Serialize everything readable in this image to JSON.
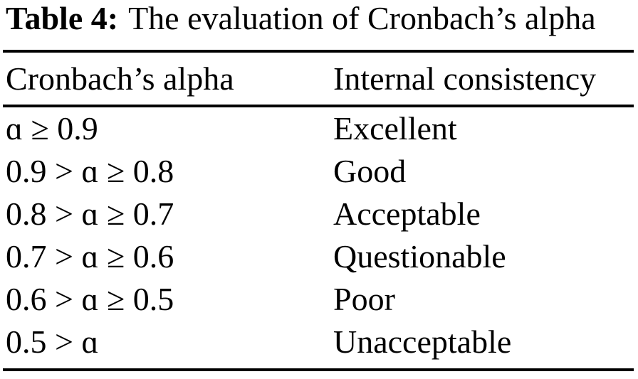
{
  "caption": {
    "label": "Table 4:",
    "text": "The evaluation of Cronbach’s alpha"
  },
  "table": {
    "headers": [
      "Cronbach’s alpha",
      "Internal consistency"
    ],
    "rows": [
      [
        "ɑ ≥ 0.9",
        "Excellent"
      ],
      [
        "0.9 > ɑ ≥ 0.8",
        "Good"
      ],
      [
        "0.8 > ɑ ≥ 0.7",
        "Acceptable"
      ],
      [
        "0.7 > ɑ ≥ 0.6",
        "Questionable"
      ],
      [
        "0.6 > ɑ ≥ 0.5",
        "Poor"
      ],
      [
        "0.5 > ɑ",
        "Unacceptable"
      ]
    ]
  },
  "colors": {
    "text": "#000000",
    "background": "#ffffff",
    "rule": "#000000"
  }
}
